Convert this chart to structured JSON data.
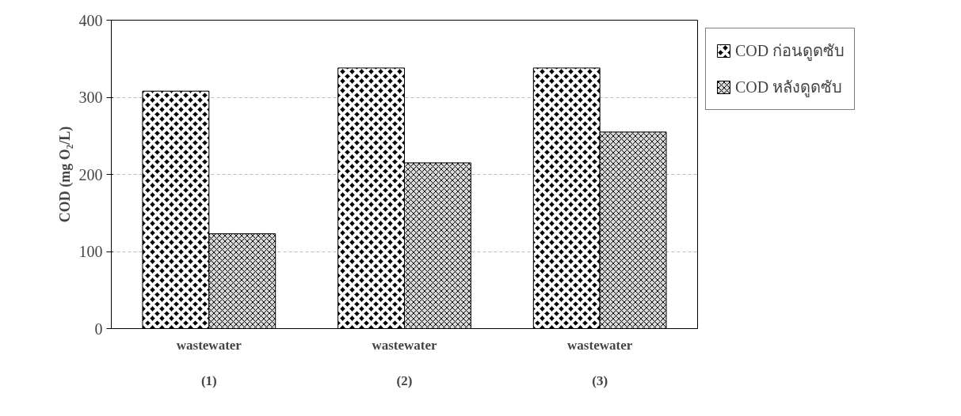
{
  "chart_data": {
    "type": "bar",
    "ylabel": "COD (mg O₂/L)",
    "categories": [
      "wastewater\n\n(1)",
      "wastewater\n\n(2)",
      "wastewater\n\n(3)"
    ],
    "series": [
      {
        "name": "COD ก่อนดูดซับ",
        "color": "#000000",
        "values": [
          308,
          338,
          338
        ]
      },
      {
        "name": "COD หลังดูดซับ",
        "color": "#d9d9d9",
        "values": [
          123,
          215,
          255
        ]
      }
    ],
    "ylim": [
      0,
      400
    ],
    "yticks": [
      0,
      100,
      200,
      300,
      400
    ],
    "grid": "y",
    "legend": "top right"
  }
}
